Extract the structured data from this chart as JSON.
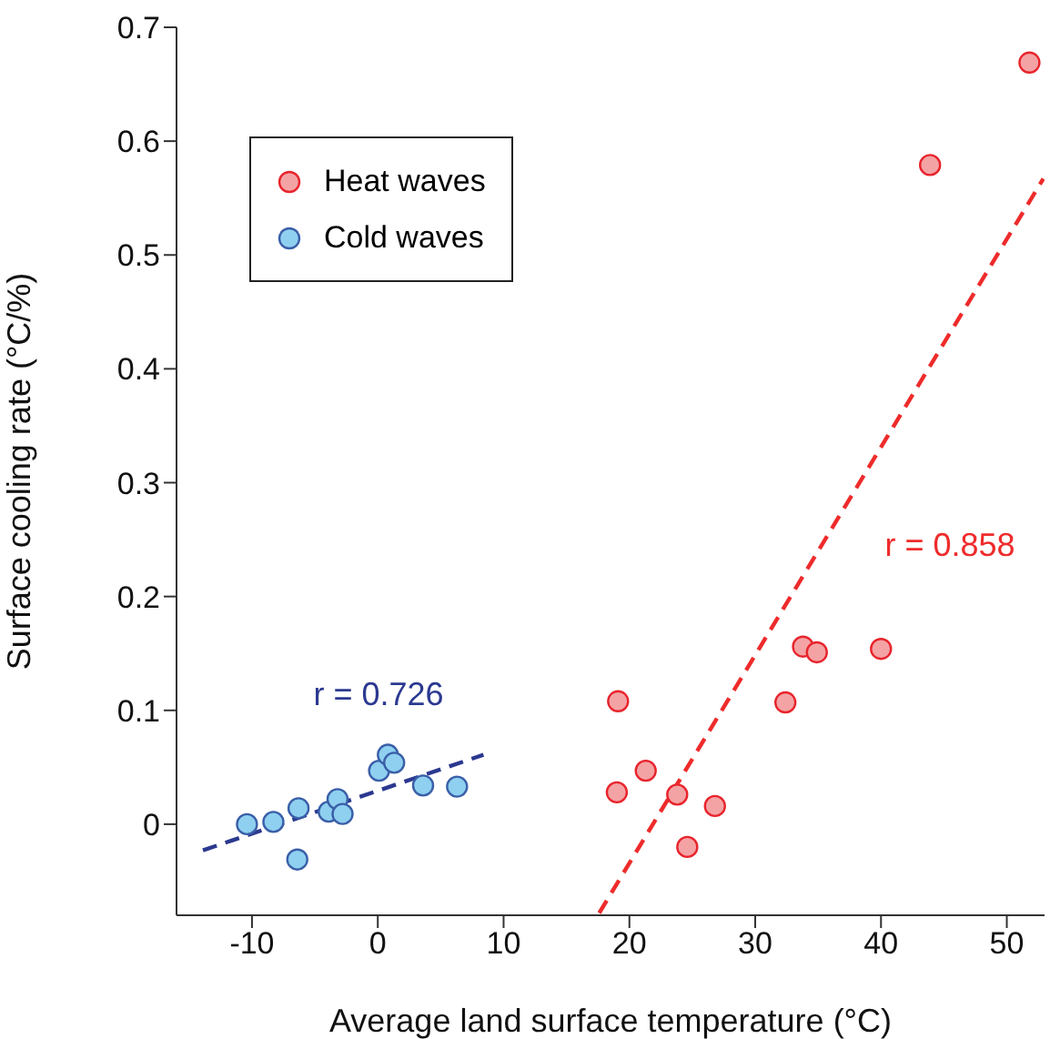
{
  "chart_data": {
    "type": "scatter",
    "xlabel": "Average land surface temperature (°C)",
    "ylabel": "Surface cooling rate (°C/%)",
    "xlim": [
      -16,
      53
    ],
    "xticks": [
      -10,
      0,
      10,
      20,
      30,
      40,
      50
    ],
    "ylim": [
      -0.08,
      0.7
    ],
    "yticks": [
      0,
      0.1,
      0.2,
      0.3,
      0.4,
      0.5,
      0.6,
      0.7
    ],
    "grid": false,
    "legend": "top left",
    "marker": "circle",
    "series": [
      {
        "name": "Heat waves",
        "color": "#f4a3a5",
        "x": [
          19.1,
          19.0,
          21.3,
          23.8,
          24.6,
          26.8,
          32.4,
          33.8,
          34.9,
          40.0,
          43.9,
          51.8
        ],
        "values": [
          0.108,
          0.028,
          0.047,
          0.026,
          -0.02,
          0.016,
          0.107,
          0.156,
          0.151,
          0.154,
          0.579,
          0.669
        ]
      },
      {
        "name": "Cold waves",
        "color": "#8fd0f0",
        "x": [
          -10.4,
          -8.3,
          -6.3,
          -6.4,
          -3.9,
          -3.2,
          -2.8,
          0.1,
          0.8,
          1.3,
          3.6,
          6.3
        ],
        "values": [
          0.0,
          0.002,
          0.014,
          -0.031,
          0.011,
          0.022,
          0.009,
          0.047,
          0.061,
          0.054,
          0.034,
          0.033
        ]
      },
      {
        "type": "line",
        "color": "#ee2b2b",
        "line_style": "dashed",
        "marker": "none",
        "x": [
          17.6,
          52.9
        ],
        "values": [
          -0.078,
          0.567
        ]
      },
      {
        "type": "line",
        "color": "#2b3990",
        "line_style": "dashed",
        "marker": "none",
        "x": [
          -13.9,
          8.4
        ],
        "values": [
          -0.023,
          0.061
        ]
      }
    ],
    "annotations": [
      "r = 0.726",
      "r = 0.858"
    ]
  }
}
